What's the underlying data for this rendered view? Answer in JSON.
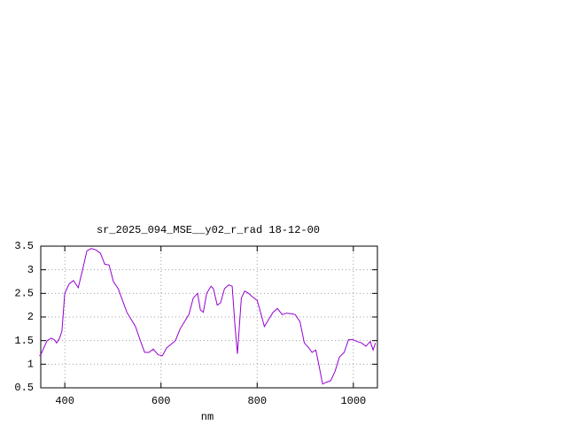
{
  "chart_data": {
    "type": "line",
    "title": "sr_2025_094_MSE__y02_r_rad 18-12-00",
    "x_label": "nm",
    "x": [
      347,
      350,
      363,
      372,
      378,
      383,
      389,
      394,
      400,
      409,
      418,
      428,
      437,
      446,
      455,
      465,
      474,
      483,
      492,
      501,
      511,
      520,
      529,
      538,
      547,
      557,
      566,
      575,
      584,
      594,
      603,
      612,
      621,
      630,
      640,
      649,
      658,
      667,
      676,
      682,
      688,
      695,
      704,
      709,
      717,
      724,
      732,
      741,
      748,
      754,
      759,
      767,
      774,
      782,
      791,
      800,
      807,
      815,
      824,
      833,
      842,
      852,
      861,
      870,
      879,
      889,
      898,
      907,
      914,
      922,
      929,
      936,
      944,
      953,
      962,
      971,
      981,
      990,
      999,
      1008,
      1017,
      1026,
      1035,
      1041,
      1046
    ],
    "series": [
      {
        "name": "sr_2025_094_MSE__y02_r_rad",
        "color": "#9400d3",
        "values": [
          1.18,
          1.2,
          1.5,
          1.55,
          1.52,
          1.45,
          1.55,
          1.7,
          2.5,
          2.7,
          2.77,
          2.62,
          3.0,
          3.4,
          3.45,
          3.42,
          3.35,
          3.12,
          3.1,
          2.75,
          2.6,
          2.35,
          2.1,
          1.95,
          1.8,
          1.5,
          1.25,
          1.25,
          1.32,
          1.2,
          1.18,
          1.35,
          1.42,
          1.5,
          1.75,
          1.9,
          2.05,
          2.4,
          2.5,
          2.15,
          2.1,
          2.5,
          2.65,
          2.6,
          2.25,
          2.3,
          2.6,
          2.68,
          2.65,
          1.8,
          1.22,
          2.4,
          2.55,
          2.5,
          2.42,
          2.35,
          2.1,
          1.8,
          1.95,
          2.1,
          2.18,
          2.05,
          2.08,
          2.07,
          2.05,
          1.9,
          1.45,
          1.35,
          1.25,
          1.3,
          0.95,
          0.58,
          0.62,
          0.65,
          0.85,
          1.15,
          1.25,
          1.52,
          1.52,
          1.48,
          1.45,
          1.38,
          1.48,
          1.3,
          1.45
        ]
      }
    ],
    "xlim": [
      350,
      1050
    ],
    "xticks": [
      400,
      600,
      800,
      1000
    ],
    "ylim": [
      0.5,
      3.5
    ],
    "yticks": [
      0.5,
      1,
      1.5,
      2,
      2.5,
      3,
      3.5
    ],
    "grid": true
  }
}
